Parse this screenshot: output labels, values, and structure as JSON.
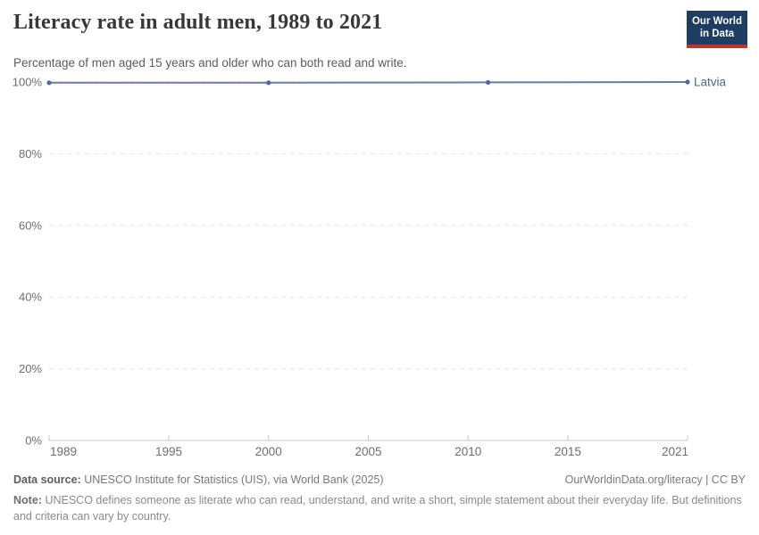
{
  "header": {
    "title": "Literacy rate in adult men, 1989 to 2021",
    "subtitle": "Percentage of men aged 15 years and older who can both read and write.",
    "logo": {
      "line1": "Our World",
      "line2": "in Data",
      "bg_color": "#1d3d63",
      "accent_color": "#c0342d"
    }
  },
  "chart_data": {
    "type": "line",
    "title": "Literacy rate in adult men, 1989 to 2021",
    "xlabel": "",
    "ylabel": "",
    "xlim": [
      1989,
      2021
    ],
    "ylim": [
      0,
      100
    ],
    "x_ticks": [
      1989,
      1995,
      2000,
      2005,
      2010,
      2015,
      2021
    ],
    "x_tick_labels": [
      "1989",
      "1995",
      "2000",
      "2005",
      "2010",
      "2015",
      "2021"
    ],
    "y_ticks": [
      0,
      20,
      40,
      60,
      80,
      100
    ],
    "y_tick_labels": [
      "0%",
      "20%",
      "40%",
      "60%",
      "80%",
      "100%"
    ],
    "grid": "horizontal-dashed",
    "legend_position": "end-of-line-label",
    "series": [
      {
        "name": "Latvia",
        "color": "#4C6A9C",
        "x": [
          1989,
          2000,
          2011,
          2021
        ],
        "values": [
          99.8,
          99.8,
          99.9,
          100
        ]
      }
    ]
  },
  "footer": {
    "data_source_label": "Data source:",
    "data_source_value": "UNESCO Institute for Statistics (UIS), via World Bank (2025)",
    "link": "OurWorldinData.org/literacy | CC BY",
    "note_label": "Note:",
    "note_value": "UNESCO defines someone as literate who can read, understand, and write a short, simple statement about their everyday life. But definitions and criteria can vary by country."
  },
  "colors": {
    "series_blue": "#4C6A9C",
    "gridline": "#e3e3e3",
    "axis": "#c9c9c9",
    "tick_text": "#6e6e6e"
  }
}
